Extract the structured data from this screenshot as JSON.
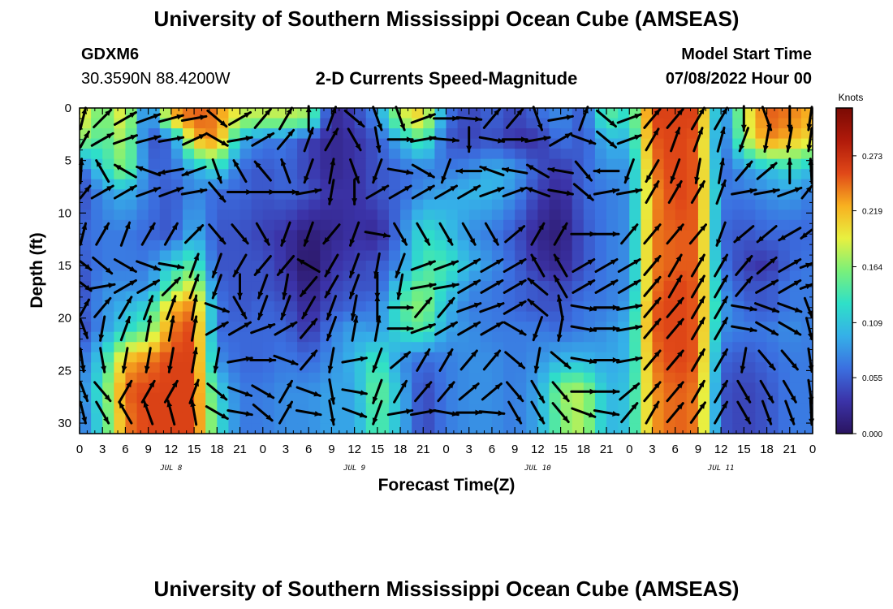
{
  "header": {
    "title": "University of Southern Mississippi Ocean Cube (AMSEAS)",
    "station": "GDXM6",
    "coords": "30.3590N  88.4200W",
    "subtitle": "2-D Currents Speed-Magnitude",
    "model_start_label": "Model Start Time",
    "model_start_value": "07/08/2022 Hour 00"
  },
  "footer": {
    "title": "University of Southern Mississippi Ocean Cube (AMSEAS)"
  },
  "colors": {
    "scale": [
      "#2a1460",
      "#3b33a8",
      "#3b6fe0",
      "#35b0e8",
      "#2fe0c8",
      "#7af07a",
      "#e8f040",
      "#f8b020",
      "#e04818",
      "#b01a0a",
      "#7a0a04"
    ]
  },
  "chart_data": {
    "type": "heatmap",
    "title": "2-D Currents Speed-Magnitude",
    "xlabel": "Forecast Time(Z)",
    "ylabel": "Depth (ft)",
    "colorbar_label": "Knots",
    "colorbar_ticks": [
      "0.273",
      "0.219",
      "0.164",
      "0.109",
      "0.055",
      "0.000"
    ],
    "colorbar_range": [
      0,
      0.32
    ],
    "xlim": [
      0,
      96
    ],
    "ylim": [
      31,
      0
    ],
    "xtick_labels": [
      "0",
      "3",
      "6",
      "9",
      "12",
      "15",
      "18",
      "21",
      "0",
      "3",
      "6",
      "9",
      "12",
      "15",
      "18",
      "21",
      "0",
      "3",
      "6",
      "9",
      "12",
      "15",
      "18",
      "21",
      "0",
      "3",
      "6",
      "9",
      "12",
      "15",
      "18",
      "21",
      "0"
    ],
    "ytick_labels": [
      "0",
      "5",
      "10",
      "15",
      "20",
      "25",
      "30"
    ],
    "ytick_values": [
      0,
      5,
      10,
      15,
      20,
      25,
      30
    ],
    "day_labels": [
      {
        "text": "JUL 8",
        "hour": 12
      },
      {
        "text": "JUL 9",
        "hour": 36
      },
      {
        "text": "JUL 10",
        "hour": 60
      },
      {
        "text": "JUL 11",
        "hour": 84
      }
    ],
    "depths": [
      1,
      3,
      6,
      8,
      12,
      15,
      17,
      19,
      21,
      24,
      27,
      29
    ],
    "times": [
      0,
      3,
      6,
      9,
      12,
      15,
      18,
      21,
      24,
      27,
      30,
      33,
      36,
      39,
      42,
      45,
      48,
      51,
      54,
      57,
      60,
      63,
      66,
      69,
      72,
      75,
      78,
      81,
      84,
      87,
      90,
      93,
      96
    ],
    "speed": [
      [
        0.2,
        0.15,
        0.2,
        0.05,
        0.22,
        0.25,
        0.24,
        0.18,
        0.18,
        0.18,
        0.17,
        0.02,
        0.04,
        0.08,
        0.18,
        0.21,
        0.07,
        0.04,
        0.06,
        0.04,
        0.06,
        0.08,
        0.05,
        0.15,
        0.12,
        0.26,
        0.26,
        0.26,
        0.06,
        0.18,
        0.25,
        0.24,
        0.22
      ],
      [
        0.17,
        0.14,
        0.18,
        0.05,
        0.06,
        0.22,
        0.24,
        0.1,
        0.07,
        0.07,
        0.04,
        0.02,
        0.03,
        0.05,
        0.1,
        0.15,
        0.05,
        0.04,
        0.05,
        0.03,
        0.03,
        0.07,
        0.05,
        0.1,
        0.1,
        0.25,
        0.26,
        0.25,
        0.05,
        0.17,
        0.24,
        0.22,
        0.2
      ],
      [
        0.05,
        0.12,
        0.17,
        0.06,
        0.06,
        0.09,
        0.12,
        0.06,
        0.05,
        0.06,
        0.04,
        0.02,
        0.03,
        0.05,
        0.06,
        0.07,
        0.07,
        0.08,
        0.1,
        0.09,
        0.05,
        0.03,
        0.06,
        0.08,
        0.08,
        0.24,
        0.26,
        0.25,
        0.06,
        0.08,
        0.1,
        0.12,
        0.1
      ],
      [
        0.04,
        0.08,
        0.1,
        0.07,
        0.05,
        0.08,
        0.06,
        0.06,
        0.05,
        0.06,
        0.05,
        0.03,
        0.03,
        0.05,
        0.06,
        0.08,
        0.09,
        0.1,
        0.1,
        0.08,
        0.04,
        0.02,
        0.06,
        0.07,
        0.08,
        0.23,
        0.26,
        0.25,
        0.07,
        0.07,
        0.08,
        0.09,
        0.07
      ],
      [
        0.06,
        0.07,
        0.07,
        0.06,
        0.05,
        0.1,
        0.05,
        0.05,
        0.04,
        0.03,
        0.01,
        0.02,
        0.03,
        0.02,
        0.07,
        0.13,
        0.11,
        0.08,
        0.07,
        0.05,
        0.02,
        0.01,
        0.05,
        0.07,
        0.08,
        0.24,
        0.25,
        0.25,
        0.06,
        0.05,
        0.06,
        0.06,
        0.06
      ],
      [
        0.05,
        0.07,
        0.07,
        0.07,
        0.12,
        0.15,
        0.05,
        0.05,
        0.05,
        0.03,
        0.0,
        0.03,
        0.04,
        0.05,
        0.08,
        0.14,
        0.14,
        0.1,
        0.08,
        0.06,
        0.03,
        0.02,
        0.05,
        0.07,
        0.08,
        0.24,
        0.25,
        0.25,
        0.07,
        0.04,
        0.03,
        0.06,
        0.07
      ],
      [
        0.04,
        0.08,
        0.08,
        0.08,
        0.15,
        0.2,
        0.06,
        0.05,
        0.05,
        0.04,
        0.01,
        0.04,
        0.05,
        0.05,
        0.12,
        0.16,
        0.12,
        0.08,
        0.07,
        0.06,
        0.05,
        0.04,
        0.06,
        0.07,
        0.08,
        0.24,
        0.26,
        0.25,
        0.08,
        0.05,
        0.05,
        0.07,
        0.07
      ],
      [
        0.05,
        0.08,
        0.1,
        0.12,
        0.22,
        0.24,
        0.07,
        0.05,
        0.06,
        0.05,
        0.02,
        0.05,
        0.06,
        0.07,
        0.14,
        0.17,
        0.1,
        0.07,
        0.07,
        0.06,
        0.05,
        0.05,
        0.07,
        0.07,
        0.09,
        0.25,
        0.26,
        0.25,
        0.09,
        0.06,
        0.05,
        0.07,
        0.07
      ],
      [
        0.04,
        0.08,
        0.12,
        0.15,
        0.24,
        0.26,
        0.06,
        0.06,
        0.06,
        0.06,
        0.03,
        0.07,
        0.09,
        0.08,
        0.13,
        0.15,
        0.09,
        0.08,
        0.07,
        0.07,
        0.07,
        0.06,
        0.07,
        0.08,
        0.1,
        0.25,
        0.26,
        0.25,
        0.08,
        0.07,
        0.07,
        0.08,
        0.07
      ],
      [
        0.06,
        0.12,
        0.22,
        0.24,
        0.26,
        0.26,
        0.08,
        0.06,
        0.06,
        0.07,
        0.06,
        0.08,
        0.1,
        0.14,
        0.08,
        0.06,
        0.07,
        0.08,
        0.08,
        0.07,
        0.08,
        0.1,
        0.1,
        0.09,
        0.1,
        0.24,
        0.26,
        0.25,
        0.06,
        0.05,
        0.06,
        0.07,
        0.07
      ],
      [
        0.07,
        0.14,
        0.25,
        0.26,
        0.26,
        0.26,
        0.12,
        0.07,
        0.07,
        0.08,
        0.08,
        0.09,
        0.09,
        0.16,
        0.1,
        0.04,
        0.07,
        0.08,
        0.08,
        0.07,
        0.09,
        0.17,
        0.18,
        0.1,
        0.11,
        0.23,
        0.25,
        0.24,
        0.05,
        0.04,
        0.05,
        0.07,
        0.07
      ],
      [
        0.06,
        0.13,
        0.24,
        0.26,
        0.26,
        0.26,
        0.13,
        0.07,
        0.07,
        0.08,
        0.08,
        0.09,
        0.09,
        0.15,
        0.1,
        0.04,
        0.07,
        0.08,
        0.08,
        0.07,
        0.09,
        0.16,
        0.18,
        0.1,
        0.11,
        0.23,
        0.25,
        0.24,
        0.05,
        0.04,
        0.05,
        0.07,
        0.07
      ]
    ],
    "direction": [
      [
        30,
        45,
        60,
        70,
        75,
        80,
        130,
        60,
        40,
        30,
        0,
        20,
        130,
        160,
        160,
        70,
        90,
        95,
        40,
        40,
        160,
        80,
        20,
        130,
        70,
        40,
        40,
        30,
        30,
        180,
        160,
        180,
        200
      ],
      [
        50,
        60,
        70,
        75,
        80,
        65,
        120,
        80,
        60,
        40,
        20,
        30,
        150,
        170,
        90,
        80,
        95,
        180,
        100,
        90,
        80,
        60,
        110,
        130,
        70,
        30,
        20,
        20,
        15,
        200,
        190,
        190,
        200
      ],
      [
        10,
        330,
        300,
        290,
        260,
        250,
        160,
        330,
        320,
        340,
        200,
        10,
        160,
        200,
        100,
        120,
        200,
        270,
        290,
        280,
        300,
        280,
        140,
        270,
        200,
        210,
        200,
        190,
        10,
        40,
        50,
        0,
        350
      ],
      [
        60,
        60,
        60,
        70,
        70,
        80,
        140,
        90,
        90,
        90,
        80,
        190,
        180,
        60,
        60,
        60,
        60,
        60,
        70,
        70,
        290,
        100,
        130,
        80,
        80,
        30,
        30,
        30,
        20,
        80,
        80,
        70,
        60
      ],
      [
        30,
        30,
        20,
        30,
        30,
        45,
        140,
        140,
        150,
        200,
        200,
        220,
        200,
        100,
        150,
        150,
        150,
        150,
        150,
        50,
        30,
        30,
        90,
        90,
        40,
        40,
        40,
        40,
        200,
        230,
        230,
        240,
        250
      ],
      [
        110,
        130,
        120,
        110,
        100,
        20,
        200,
        210,
        220,
        220,
        300,
        210,
        200,
        190,
        200,
        70,
        70,
        60,
        60,
        60,
        330,
        330,
        60,
        60,
        60,
        40,
        30,
        30,
        30,
        40,
        50,
        60,
        80
      ],
      [
        110,
        80,
        60,
        60,
        45,
        20,
        200,
        180,
        200,
        190,
        220,
        210,
        200,
        180,
        190,
        80,
        80,
        60,
        60,
        60,
        310,
        330,
        60,
        60,
        60,
        40,
        30,
        30,
        30,
        40,
        60,
        60,
        80
      ],
      [
        50,
        40,
        30,
        20,
        20,
        10,
        110,
        150,
        200,
        200,
        210,
        200,
        190,
        0,
        90,
        40,
        40,
        70,
        70,
        60,
        310,
        350,
        100,
        90,
        80,
        40,
        40,
        30,
        30,
        100,
        110,
        110,
        140
      ],
      [
        140,
        190,
        20,
        10,
        10,
        10,
        60,
        60,
        70,
        60,
        40,
        200,
        10,
        10,
        90,
        70,
        60,
        60,
        60,
        120,
        200,
        190,
        100,
        90,
        80,
        40,
        40,
        30,
        30,
        100,
        120,
        120,
        150
      ],
      [
        160,
        170,
        190,
        190,
        190,
        10,
        190,
        80,
        90,
        110,
        40,
        190,
        80,
        200,
        50,
        30,
        30,
        40,
        40,
        130,
        190,
        130,
        100,
        90,
        80,
        40,
        40,
        30,
        30,
        190,
        140,
        140,
        160
      ],
      [
        140,
        140,
        30,
        30,
        30,
        20,
        130,
        110,
        120,
        30,
        110,
        170,
        100,
        200,
        30,
        40,
        40,
        50,
        50,
        140,
        150,
        140,
        90,
        90,
        50,
        40,
        40,
        30,
        30,
        150,
        150,
        150,
        160
      ],
      [
        150,
        150,
        330,
        340,
        345,
        350,
        120,
        100,
        130,
        30,
        100,
        170,
        110,
        200,
        80,
        80,
        100,
        90,
        95,
        150,
        150,
        140,
        110,
        100,
        40,
        30,
        40,
        35,
        30,
        150,
        160,
        160,
        170
      ]
    ]
  }
}
